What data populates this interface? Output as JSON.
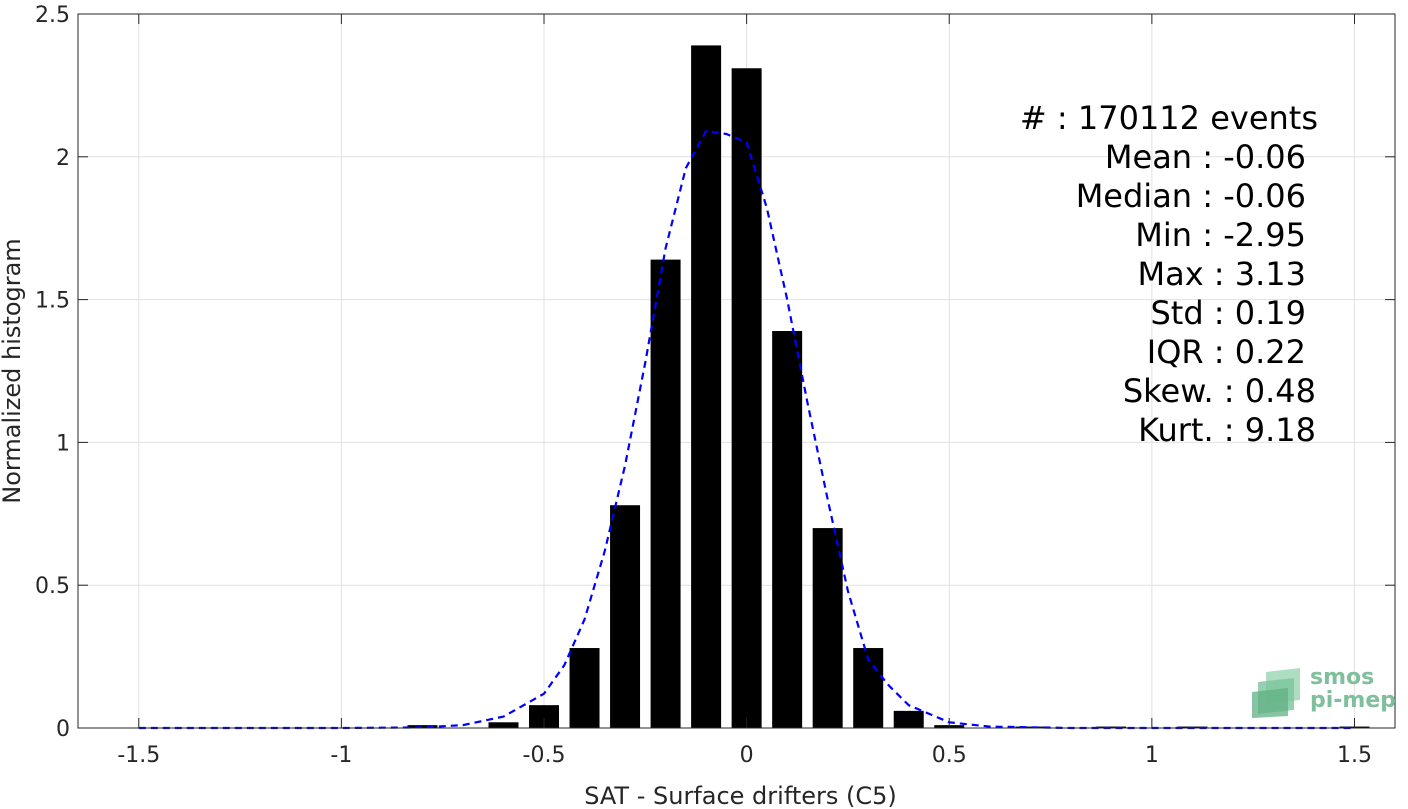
{
  "chart_data": {
    "type": "bar",
    "xlabel": "SAT - Surface drifters (C5)",
    "ylabel": "Normalized histogram",
    "xlim": [
      -1.65,
      1.6
    ],
    "ylim": [
      0,
      2.5
    ],
    "xticks": [
      -1.5,
      -1,
      -0.5,
      0,
      0.5,
      1,
      1.5
    ],
    "xtick_labels": [
      "-1.5",
      "-1",
      "-0.5",
      "0",
      "0.5",
      "1",
      "1.5"
    ],
    "yticks": [
      0,
      0.5,
      1,
      1.5,
      2,
      2.5
    ],
    "ytick_labels": [
      "0",
      "0.5",
      "1",
      "1.5",
      "2",
      "2.5"
    ],
    "grid": true,
    "bar_color": "#000000",
    "bin_width": 0.1,
    "bar_centers": [
      -1.5,
      -1.4,
      -1.3,
      -1.2,
      -1.1,
      -1.0,
      -0.9,
      -0.8,
      -0.7,
      -0.6,
      -0.5,
      -0.4,
      -0.3,
      -0.2,
      -0.1,
      0.0,
      0.1,
      0.2,
      0.3,
      0.4,
      0.5,
      0.6,
      0.7,
      0.8,
      0.9,
      1.0,
      1.1,
      1.2,
      1.3,
      1.4,
      1.5
    ],
    "values": [
      0,
      0,
      0,
      0,
      0,
      0,
      0,
      0.01,
      0,
      0.02,
      0.08,
      0.28,
      0.78,
      1.64,
      2.39,
      2.31,
      1.39,
      0.7,
      0.28,
      0.06,
      0.01,
      0,
      0.005,
      0,
      0.005,
      0,
      0.005,
      0,
      0,
      0,
      0.005
    ],
    "fit": {
      "color": "#0000ff",
      "style": "dashed",
      "x": [
        -1.5,
        -1.0,
        -0.8,
        -0.7,
        -0.6,
        -0.5,
        -0.45,
        -0.4,
        -0.35,
        -0.3,
        -0.25,
        -0.2,
        -0.15,
        -0.1,
        -0.05,
        0.0,
        0.05,
        0.1,
        0.15,
        0.2,
        0.25,
        0.3,
        0.35,
        0.4,
        0.5,
        0.6,
        0.8,
        1.0,
        1.5
      ],
      "y": [
        0,
        0,
        0.002,
        0.01,
        0.04,
        0.12,
        0.22,
        0.38,
        0.62,
        0.92,
        1.28,
        1.68,
        1.96,
        2.09,
        2.08,
        2.05,
        1.82,
        1.5,
        1.14,
        0.8,
        0.48,
        0.24,
        0.15,
        0.08,
        0.02,
        0.005,
        0,
        0,
        0
      ]
    },
    "stats": [
      "#  : 170112 events",
      "Mean : -0.06",
      "Median : -0.06",
      "Min : -2.95",
      "Max : 3.13",
      "Std : 0.19",
      "IQR : 0.22",
      "Skew. : 0.48",
      "Kurt. : 9.18"
    ]
  },
  "logo": {
    "line1": "smos",
    "line2": "pi-mep"
  }
}
